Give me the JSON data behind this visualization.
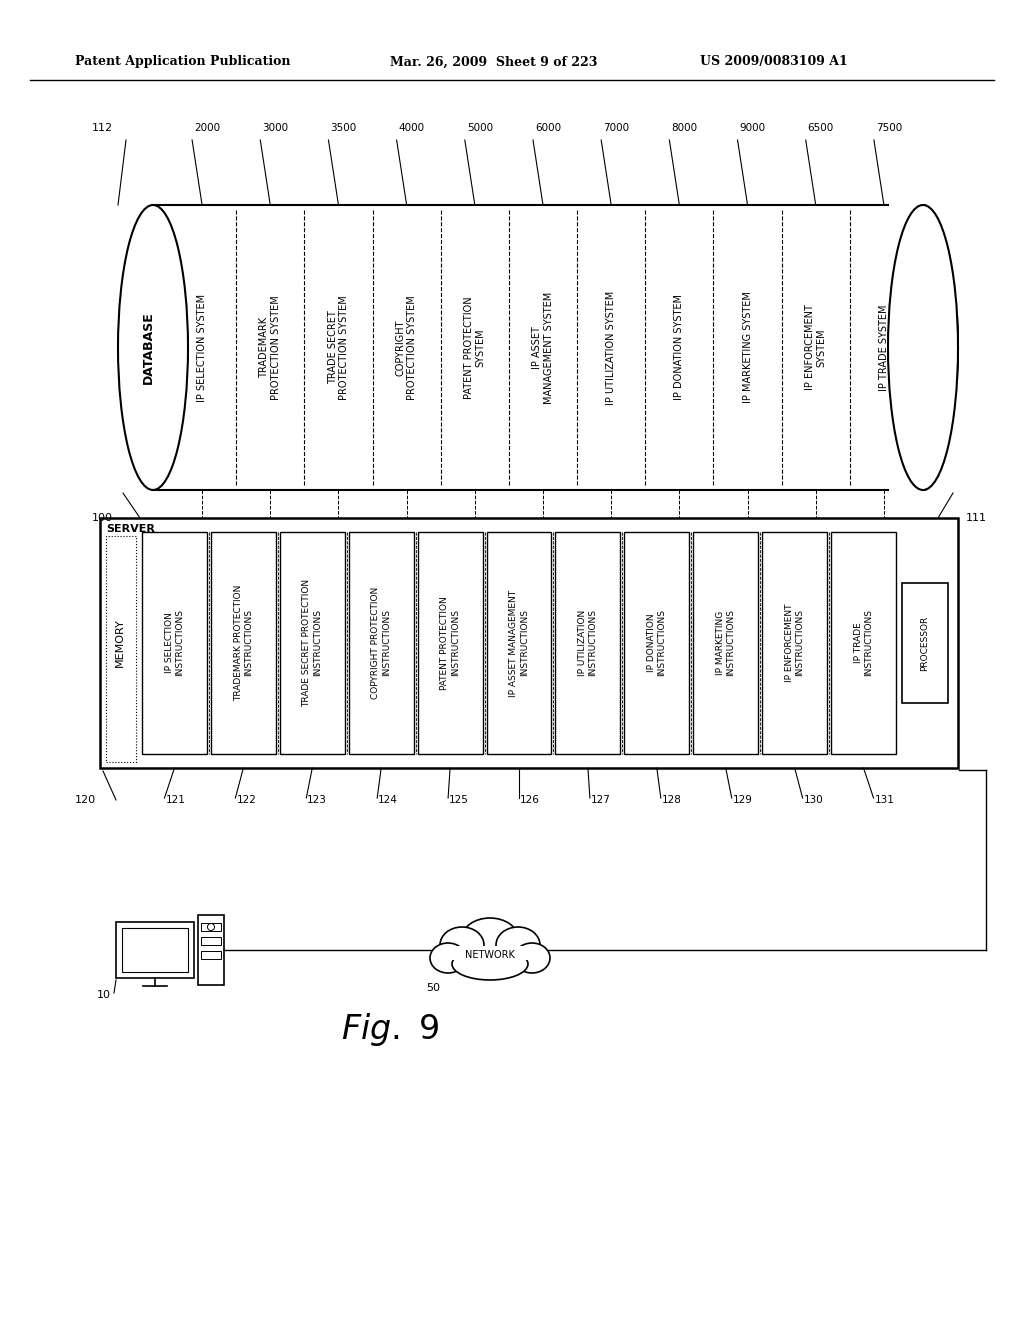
{
  "header_left": "Patent Application Publication",
  "header_mid": "Mar. 26, 2009  Sheet 9 of 223",
  "header_right": "US 2009/0083109 A1",
  "fig_label": "Fig. 9",
  "db_label": "DATABASE",
  "db_ref": "100",
  "db_right_ref": "111",
  "db_top_ref": "112",
  "server_label": "SERVER",
  "server_ref": "120",
  "memory_label": "MEMORY",
  "db_columns": [
    {
      "ref": "2000",
      "text": "IP SELECTION SYSTEM"
    },
    {
      "ref": "3000",
      "text": "TRADEMARK\nPROTECTION SYSTEM"
    },
    {
      "ref": "3500",
      "text": "TRADE SECRET\nPROTECTION SYSTEM"
    },
    {
      "ref": "4000",
      "text": "COPYRIGHT\nPROTECTION SYSTEM"
    },
    {
      "ref": "5000",
      "text": "PATENT PROTECTION\nSYSTEM"
    },
    {
      "ref": "6000",
      "text": "IP ASSET\nMANAGEMENT SYSTEM"
    },
    {
      "ref": "7000",
      "text": "IP UTILIZATION SYSTEM"
    },
    {
      "ref": "8000",
      "text": "IP DONATION SYSTEM"
    },
    {
      "ref": "9000",
      "text": "IP MARKETING SYSTEM"
    },
    {
      "ref": "6500",
      "text": "IP ENFORCEMENT\nSYSTEM"
    },
    {
      "ref": "7500",
      "text": "IP TRADE SYSTEM"
    }
  ],
  "server_columns": [
    {
      "ref": "121",
      "text": "IP SELECTION\nINSTRUCTIONS"
    },
    {
      "ref": "122",
      "text": "TRADEMARK PROTECTION\nINSTRUCTIONS"
    },
    {
      "ref": "123",
      "text": "TRADE SECRET PROTECTION\nINSTRUCTIONS"
    },
    {
      "ref": "124",
      "text": "COPYRIGHT PROTECTION\nINSTRUCTIONS"
    },
    {
      "ref": "125",
      "text": "PATENT PROTECTION\nINSTRUCTIONS"
    },
    {
      "ref": "126",
      "text": "IP ASSET MANAGEMENT\nINSTRUCTIONS"
    },
    {
      "ref": "127",
      "text": "IP UTILIZATION\nINSTRUCTIONS"
    },
    {
      "ref": "128",
      "text": "IP DONATION\nINSTRUCTIONS"
    },
    {
      "ref": "129",
      "text": "IP MARKETING\nINSTRUCTIONS"
    },
    {
      "ref": "130",
      "text": "IP ENFORCEMENT\nINSTRUCTIONS"
    },
    {
      "ref": "131",
      "text": "IP TRADE\nINSTRUCTIONS"
    }
  ],
  "processor_label": "PROCESSOR",
  "computer_ref": "10",
  "network_ref": "50",
  "network_label": "NETWORK"
}
